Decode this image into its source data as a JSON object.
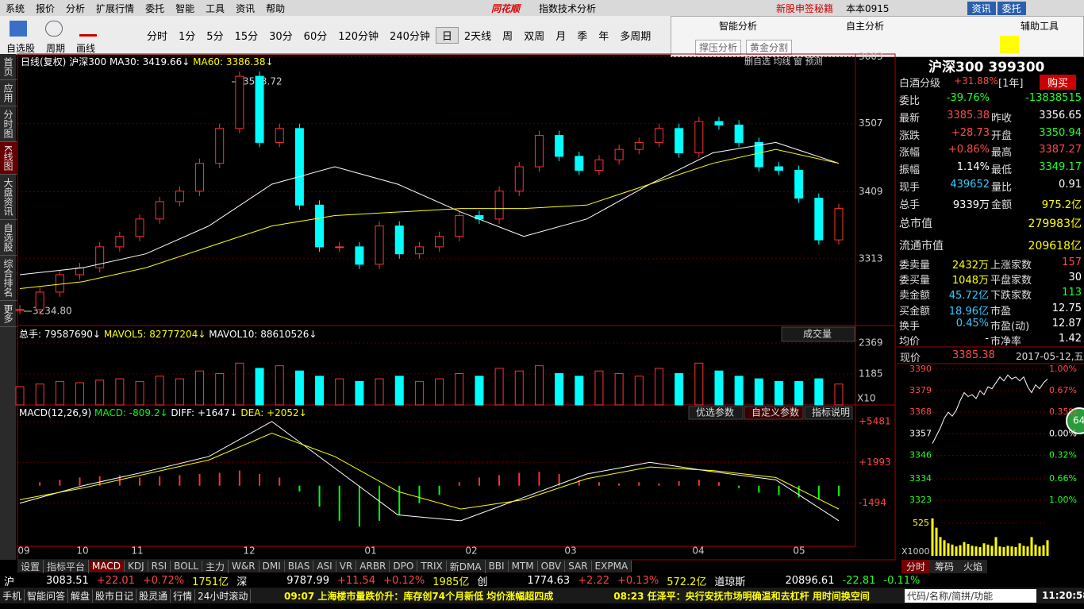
{
  "menu": [
    "系统",
    "报价",
    "分析",
    "扩展行情",
    "委托",
    "智能",
    "工具",
    "资讯",
    "帮助"
  ],
  "app_title": "同花顺",
  "window_title": "指数技术分析",
  "top_right": [
    "新股申签秘籍",
    "本本0915",
    "资讯",
    "委托"
  ],
  "toolbar_left": [
    "自选股",
    "周期",
    "画线"
  ],
  "periods": [
    "分时",
    "1分",
    "5分",
    "15分",
    "30分",
    "60分",
    "120分钟",
    "240分钟",
    "日",
    "2天线",
    "周",
    "双周",
    "月",
    "季",
    "年",
    "多周期"
  ],
  "float_panel": {
    "titles": [
      "智能分析",
      "自主分析",
      "辅助工具"
    ],
    "buttons": [
      "撑压分析",
      "黄金分割"
    ]
  },
  "side_tabs": [
    "首页",
    "应用",
    "分时图",
    "K线图",
    "大盘资讯",
    "自选股",
    "综合排名",
    "更多"
  ],
  "kline": {
    "legend": [
      "日线(复权)",
      "沪深300",
      "MA30: 3419.66↓",
      "MA60: 3386.38↓"
    ],
    "corner": [
      "删自选",
      "均线",
      "窗",
      "预测"
    ],
    "high_label": "3583.72",
    "low_label": "3234.80",
    "ylim": [
      3217,
      3607
    ],
    "yticks": [
      3313,
      3409,
      3507,
      3603
    ],
    "close": [
      3240,
      3265,
      3290,
      3300,
      3330,
      3345,
      3370,
      3395,
      3410,
      3450,
      3500,
      3575,
      3480,
      3500,
      3390,
      3330,
      3330,
      3305,
      3360,
      3320,
      3330,
      3345,
      3375,
      3370,
      3410,
      3445,
      3490,
      3460,
      3440,
      3455,
      3470,
      3480,
      3500,
      3465,
      3510,
      3505,
      3480,
      3445,
      3440,
      3400,
      3340,
      3385
    ],
    "ma30": [
      3290,
      3300,
      3320,
      3360,
      3420,
      3445,
      3420,
      3380,
      3345,
      3370,
      3420,
      3465,
      3480,
      3450
    ],
    "ma60": [
      3270,
      3280,
      3300,
      3330,
      3360,
      3375,
      3380,
      3385,
      3385,
      3390,
      3420,
      3450,
      3470,
      3450
    ]
  },
  "volume": {
    "legend": [
      "总手: 79587690↓",
      "MAVOL5: 82777204↓",
      "MAVOL10: 88610526↓"
    ],
    "dropdown": "成交量",
    "unit": "X10",
    "ylim": [
      0,
      2977
    ],
    "yticks": [
      1185,
      2369
    ],
    "values": [
      700,
      800,
      900,
      850,
      950,
      1000,
      900,
      1100,
      1000,
      1300,
      1200,
      1600,
      1400,
      1500,
      1300,
      1100,
      1000,
      900,
      1000,
      1100,
      900,
      1000,
      1200,
      1100,
      1400,
      1300,
      1500,
      1200,
      1100,
      1300,
      1200,
      1100,
      1400,
      1200,
      1600,
      1300,
      1100,
      1000,
      900,
      900,
      1000,
      800
    ]
  },
  "macd": {
    "legend": [
      "MACD(12,26,9)",
      "MACD: -809.2↓",
      "DIFF: +1647↓",
      "DEA: +2052↓"
    ],
    "buttons": [
      "优选参数",
      "自定义参数",
      "指标说明"
    ],
    "ylim": [
      -5188,
      6780
    ],
    "yticks": [
      -1494,
      {
        "value": 1993,
        "label": "+1993"
      },
      {
        "value": 5481,
        "label": "+5481"
      }
    ],
    "hist": [
      0,
      300,
      500,
      700,
      800,
      900,
      700,
      800,
      900,
      1000,
      1100,
      1300,
      1000,
      700,
      -500,
      -1800,
      -3000,
      -3500,
      -3000,
      -2500,
      -1500,
      -800,
      300,
      700,
      900,
      1100,
      1200,
      1000,
      500,
      300,
      200,
      300,
      200,
      400,
      500,
      300,
      -200,
      -600,
      -800,
      -1000,
      -1200,
      -900
    ],
    "diff": [
      -1500,
      0,
      1200,
      2500,
      5500,
      1500,
      -2500,
      -3000,
      -1000,
      1000,
      2000,
      1200,
      500,
      -3000
    ],
    "dea": [
      -1200,
      -200,
      1000,
      2200,
      4500,
      2500,
      -500,
      -2000,
      -1200,
      600,
      1600,
      1300,
      700,
      -2000
    ]
  },
  "months": [
    "09",
    "10",
    "11",
    "12",
    "01",
    "02",
    "03",
    "04",
    "05"
  ],
  "indicator_tabs": [
    "设置",
    "指标平台",
    "MACD",
    "KDJ",
    "RSI",
    "BOLL",
    "主力",
    "W&R",
    "DMI",
    "BIAS",
    "ASI",
    "VR",
    "ARBR",
    "DPO",
    "TRIX",
    "新DMA",
    "BBI",
    "MTM",
    "OBV",
    "SAR",
    "EXPMA"
  ],
  "quote": {
    "title": "沪深300 399300",
    "fund": [
      "白酒分级",
      "+31.88%",
      "[1年]"
    ],
    "buy": "购买",
    "rows_a": [
      [
        "委比",
        "-39.76%",
        "-13838515"
      ],
      [
        "最新",
        "3385.38",
        "昨收",
        "3356.65"
      ],
      [
        "涨跌",
        "+28.73",
        "开盘",
        "3350.94"
      ],
      [
        "涨幅",
        "+0.86%",
        "最高",
        "3387.27"
      ],
      [
        "振幅",
        "1.14%",
        "最低",
        "3349.17"
      ],
      [
        "现手",
        "439652",
        "量比",
        "0.91"
      ],
      [
        "总手",
        "9339万",
        "金额",
        "975.2亿"
      ]
    ],
    "big": [
      [
        "总市值",
        "279983亿"
      ],
      [
        "流通市值",
        "209618亿"
      ]
    ],
    "rows_b": [
      [
        "委卖量",
        "2432万",
        "上涨家数",
        "157"
      ],
      [
        "委买量",
        "1048万",
        "平盘家数",
        "30"
      ],
      [
        "卖金额",
        "45.72亿",
        "下跌家数",
        "113"
      ],
      [
        "买金额",
        "18.96亿",
        "市盈",
        "12.75"
      ],
      [
        "换手",
        "0.45%",
        "市盈(动)",
        "12.87"
      ],
      [
        "均价",
        "-",
        "市净率",
        "1.42"
      ]
    ]
  },
  "intraday": {
    "header": [
      "现价",
      "3385.38",
      "2017-05-12,五"
    ],
    "ylim": [
      3319,
      3392
    ],
    "yticks": [
      3390,
      3379,
      3368,
      3357,
      3346,
      3334,
      3323
    ],
    "pct_labels": [
      "1.00%",
      "0.67%",
      "0.35%",
      "0.00%",
      "0.32%",
      "0.66%",
      "1.00%"
    ],
    "price": [
      3352,
      3356,
      3360,
      3365,
      3368,
      3366,
      3369,
      3374,
      3378,
      3376,
      3377,
      3375,
      3379,
      3377,
      3381,
      3380,
      3383,
      3386,
      3384,
      3387,
      3385,
      3386,
      3384,
      3386,
      3381,
      3378,
      3382,
      3380,
      3383,
      3385
    ],
    "vol_ylim": [
      0,
      700
    ],
    "vol_ticks": [
      525
    ],
    "vol_unit": "X1000",
    "volume": [
      600,
      450,
      300,
      250,
      200,
      180,
      150,
      170,
      220,
      190,
      160,
      150,
      140,
      200,
      180,
      160,
      300,
      150,
      140,
      160,
      150,
      140,
      200,
      160,
      150,
      300,
      180,
      150,
      170,
      250
    ],
    "badge": "64",
    "tabs": [
      "分时",
      "筹码",
      "火焰"
    ]
  },
  "ticker": [
    "沪",
    "3083.51",
    "+22.01",
    "+0.72%",
    "1751亿",
    "深",
    "9787.99",
    "+11.54",
    "+0.12%",
    "1985亿",
    "创",
    "1774.63",
    "+2.22",
    "+0.13%",
    "572.2亿",
    "道琼斯",
    "20896.61",
    "-22.81",
    "-0.11%"
  ],
  "status": {
    "items": [
      "手机",
      "智能问答",
      "解盘",
      "股市日记",
      "股灵通",
      "行情",
      "24小时滚动"
    ],
    "news": [
      "09:07 上海楼市量跌价升：库存创74个月新低 均价涨幅超四成",
      "08:23 任泽平：央行安抚市场明确温和去杠杆 用时间换空间"
    ],
    "search": "代码/名称/简拼/功能",
    "time": "11:20:58"
  }
}
